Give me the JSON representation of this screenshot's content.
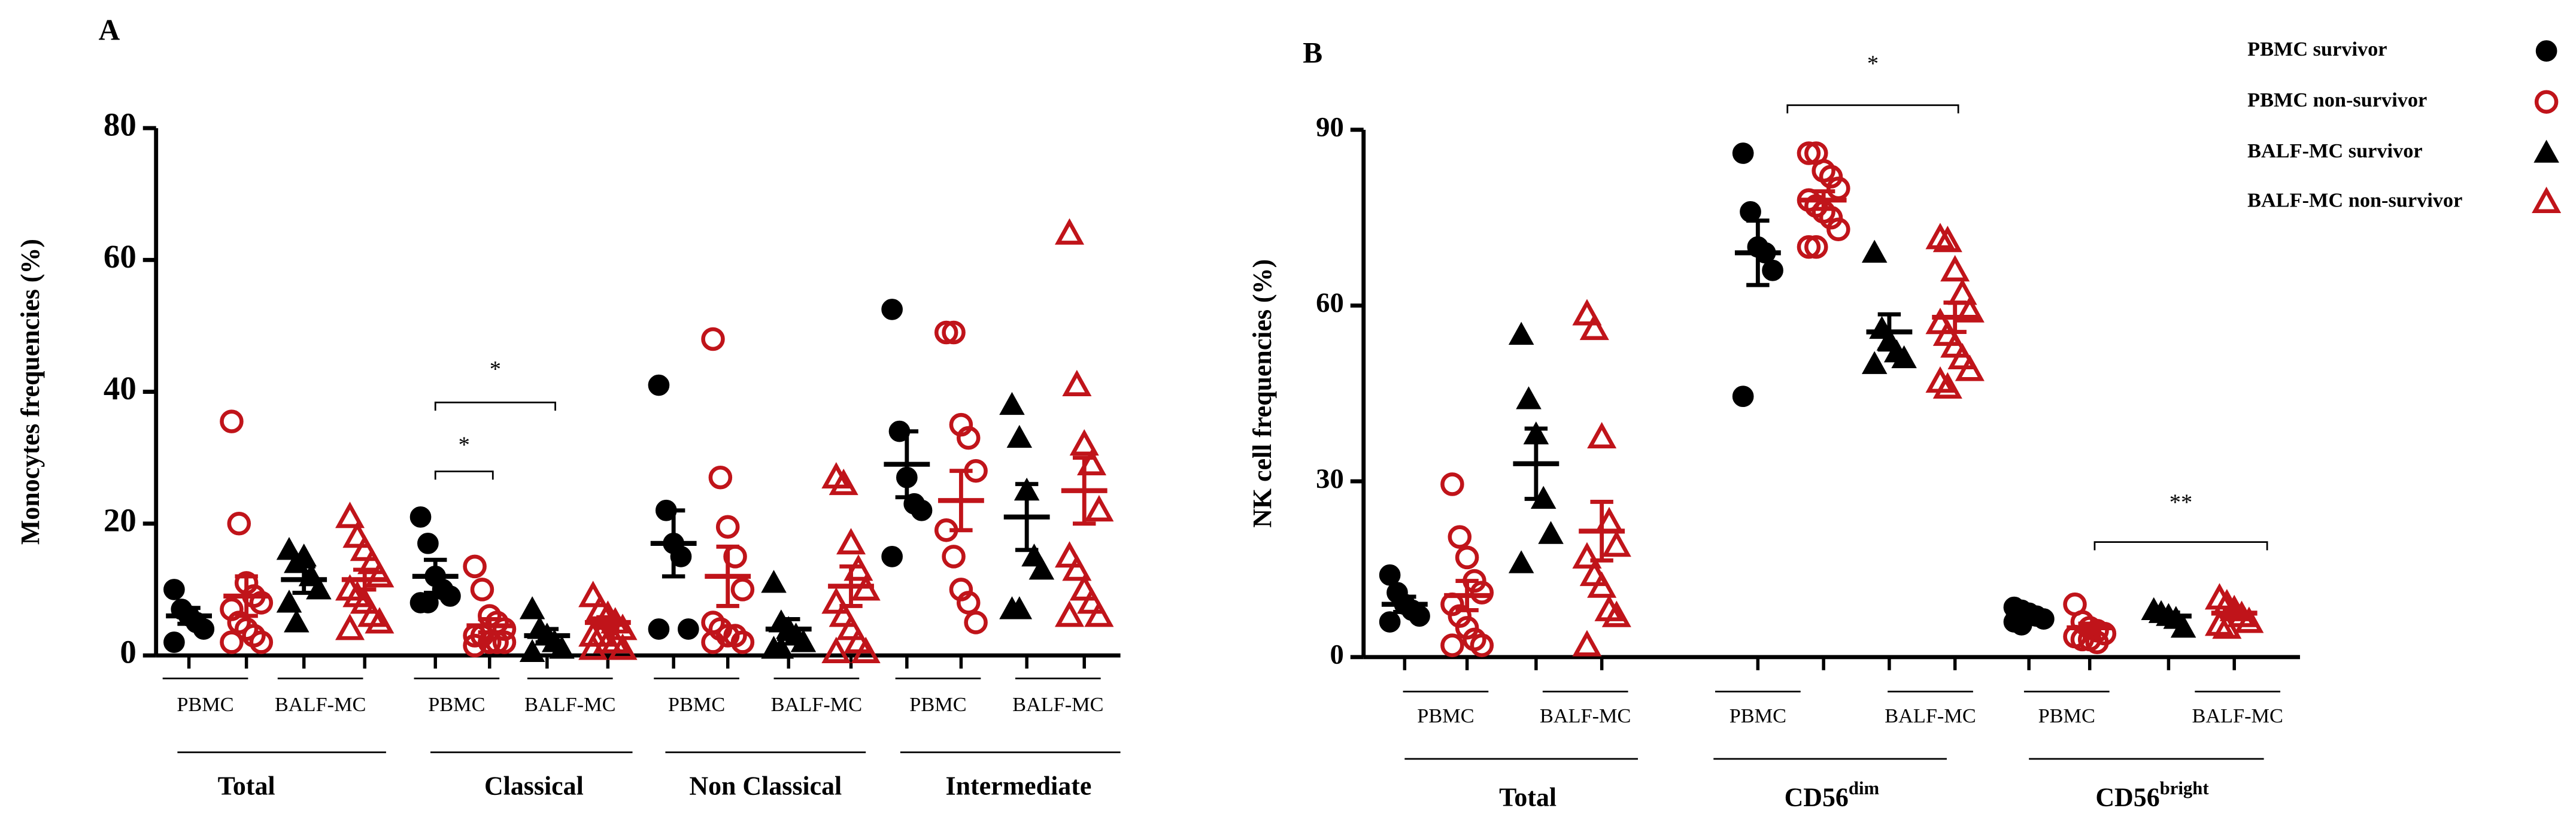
{
  "legend": [
    {
      "name": "PBMC survivor",
      "color": "#000000",
      "marker": "circle",
      "filled": true
    },
    {
      "name": "PBMC non-survivor",
      "color": "#c0141a",
      "marker": "circle",
      "filled": false
    },
    {
      "name": "BALF-MC survivor",
      "color": "#000000",
      "marker": "triangle",
      "filled": true
    },
    {
      "name": "BALF-MC non-survivor",
      "color": "#c0141a",
      "marker": "triangle",
      "filled": false
    }
  ],
  "chart_data": [
    {
      "type": "dot",
      "title": "A",
      "y_label": "Monocytes frequencies (%)",
      "ylim": [
        0,
        80
      ],
      "yticks": [
        0,
        20,
        40,
        60,
        80
      ],
      "annotations": [
        "*",
        "*"
      ],
      "groups": [
        {
          "label": "Total",
          "subgroups": [
            {
              "label": "PBMC",
              "sets": [
                {
                  "values": [
                    10,
                    7,
                    6,
                    5,
                    4,
                    2
                  ],
                  "mean": 6,
                  "sem": 1.2
                },
                {
                  "values": [
                    35.5,
                    20,
                    11,
                    9,
                    8,
                    7,
                    5,
                    4,
                    3,
                    2,
                    2
                  ],
                  "mean": 9,
                  "sem": 3
                }
              ]
            },
            {
              "label": "BALF-MC",
              "sets": [
                {
                  "values": [
                    16,
                    14,
                    15,
                    12,
                    10,
                    8,
                    5
                  ],
                  "mean": 11.5,
                  "sem": 2
                },
                {
                  "values": [
                    21,
                    18,
                    16,
                    14,
                    12,
                    10,
                    9,
                    8,
                    6,
                    5,
                    4
                  ],
                  "mean": 11.5,
                  "sem": 1.5
                }
              ]
            }
          ]
        },
        {
          "label": "Classical",
          "subgroups": [
            {
              "label": "PBMC",
              "sets": [
                {
                  "values": [
                    21,
                    17,
                    12,
                    10,
                    9,
                    8,
                    8
                  ],
                  "mean": 12,
                  "sem": 2.5
                },
                {
                  "values": [
                    13.5,
                    10,
                    6,
                    5,
                    4,
                    3,
                    3,
                    2,
                    2,
                    2,
                    1.5
                  ],
                  "mean": 4.5,
                  "sem": 1
                }
              ]
            },
            {
              "label": "BALF-MC",
              "sets": [
                {
                  "values": [
                    7,
                    4,
                    3,
                    2,
                    1,
                    0.5
                  ],
                  "mean": 3,
                  "sem": 1
                },
                {
                  "values": [
                    9,
                    7,
                    6,
                    5,
                    4,
                    3,
                    3,
                    2,
                    2,
                    1,
                    1
                  ],
                  "mean": 5,
                  "sem": 0.8
                }
              ]
            }
          ]
        },
        {
          "label": "Non Classical",
          "subgroups": [
            {
              "label": "PBMC",
              "sets": [
                {
                  "values": [
                    41,
                    22,
                    17,
                    15,
                    4,
                    4
                  ],
                  "mean": 17,
                  "sem": 5
                },
                {
                  "values": [
                    48,
                    27,
                    19.5,
                    15,
                    10,
                    5,
                    4,
                    3,
                    3,
                    2,
                    2
                  ],
                  "mean": 12,
                  "sem": 4.5
                }
              ]
            },
            {
              "label": "BALF-MC",
              "sets": [
                {
                  "values": [
                    11,
                    5,
                    4,
                    3,
                    2,
                    1,
                    1
                  ],
                  "mean": 4,
                  "sem": 1.5
                },
                {
                  "values": [
                    27,
                    26,
                    17,
                    13,
                    10,
                    8,
                    6,
                    4,
                    2,
                    0.5,
                    0.5
                  ],
                  "mean": 10.5,
                  "sem": 3
                }
              ]
            }
          ]
        },
        {
          "label": "Intermediate",
          "subgroups": [
            {
              "label": "PBMC",
              "sets": [
                {
                  "values": [
                    52.5,
                    34,
                    27,
                    23,
                    22,
                    15
                  ],
                  "mean": 29,
                  "sem": 5
                },
                {
                  "values": [
                    49,
                    49,
                    35,
                    33,
                    28,
                    19,
                    15,
                    10,
                    8,
                    5
                  ],
                  "mean": 23.5,
                  "sem": 4.5
                }
              ]
            },
            {
              "label": "BALF-MC",
              "sets": [
                {
                  "values": [
                    38,
                    33,
                    25,
                    15,
                    13,
                    7,
                    7
                  ],
                  "mean": 21,
                  "sem": 5
                },
                {
                  "values": [
                    64,
                    41,
                    32,
                    29,
                    22,
                    15,
                    13,
                    10,
                    8,
                    6,
                    6
                  ],
                  "mean": 25,
                  "sem": 5
                }
              ]
            }
          ]
        }
      ]
    },
    {
      "type": "dot",
      "title": "B",
      "y_label": "NK cell frequencies (%)",
      "ylim": [
        0,
        90
      ],
      "yticks": [
        0,
        30,
        60,
        90
      ],
      "annotations": [
        "*",
        "**"
      ],
      "groups": [
        {
          "label": "Total",
          "subgroups": [
            {
              "label": "PBMC",
              "sets": [
                {
                  "values": [
                    14,
                    11,
                    9,
                    8,
                    7,
                    6
                  ],
                  "mean": 9,
                  "sem": 1.3
                },
                {
                  "values": [
                    29.5,
                    20.5,
                    17,
                    13,
                    11,
                    9,
                    7,
                    5,
                    3,
                    2,
                    2
                  ],
                  "mean": 10.5,
                  "sem": 2.5
                }
              ]
            },
            {
              "label": "BALF-MC",
              "sets": [
                {
                  "values": [
                    55,
                    44,
                    38,
                    27,
                    21,
                    16
                  ],
                  "mean": 33,
                  "sem": 6
                },
                {
                  "values": [
                    58.5,
                    56,
                    37.5,
                    23,
                    19,
                    17,
                    14,
                    12,
                    8,
                    7,
                    2
                  ],
                  "mean": 21.5,
                  "sem": 5
                }
              ]
            }
          ]
        },
        {
          "label": {
            "text": "CD56",
            "sup": "dim"
          },
          "subgroups": [
            {
              "label": "PBMC",
              "sets": [
                {
                  "values": [
                    86,
                    76,
                    70,
                    69,
                    66,
                    44.5
                  ],
                  "mean": 69,
                  "sem": 5.5
                },
                {
                  "values": [
                    86,
                    86,
                    83,
                    82,
                    80,
                    78,
                    77,
                    76,
                    75,
                    73,
                    70,
                    70
                  ],
                  "mean": 78,
                  "sem": 1.5
                }
              ]
            },
            {
              "label": "BALF-MC",
              "sets": [
                {
                  "values": [
                    69,
                    56,
                    54,
                    52,
                    51,
                    50
                  ],
                  "mean": 55.5,
                  "sem": 3
                },
                {
                  "values": [
                    71.5,
                    71,
                    66,
                    62,
                    59,
                    57,
                    55,
                    53,
                    51,
                    49,
                    47,
                    46
                  ],
                  "mean": 58,
                  "sem": 2.5
                }
              ]
            }
          ]
        },
        {
          "label": {
            "text": "CD56",
            "sup": "bright"
          },
          "subgroups": [
            {
              "label": "PBMC",
              "sets": [
                {
                  "values": [
                    8.5,
                    8,
                    7.5,
                    7,
                    6.5,
                    6,
                    5.5
                  ],
                  "mean": 7,
                  "sem": 0.5
                },
                {
                  "values": [
                    9,
                    6,
                    5,
                    4.5,
                    4,
                    3.5,
                    3,
                    3,
                    2.5
                  ],
                  "mean": 5,
                  "sem": 0.7
                }
              ]
            },
            {
              "label": "BALF-MC",
              "sets": [
                {
                  "values": [
                    8,
                    7.5,
                    7,
                    6.5,
                    5
                  ],
                  "mean": 7,
                  "sem": 0.6
                },
                {
                  "values": [
                    10,
                    9,
                    8,
                    7,
                    6,
                    5.5,
                    5
                  ],
                  "mean": 7.5,
                  "sem": 0.6
                }
              ]
            }
          ]
        }
      ]
    }
  ]
}
